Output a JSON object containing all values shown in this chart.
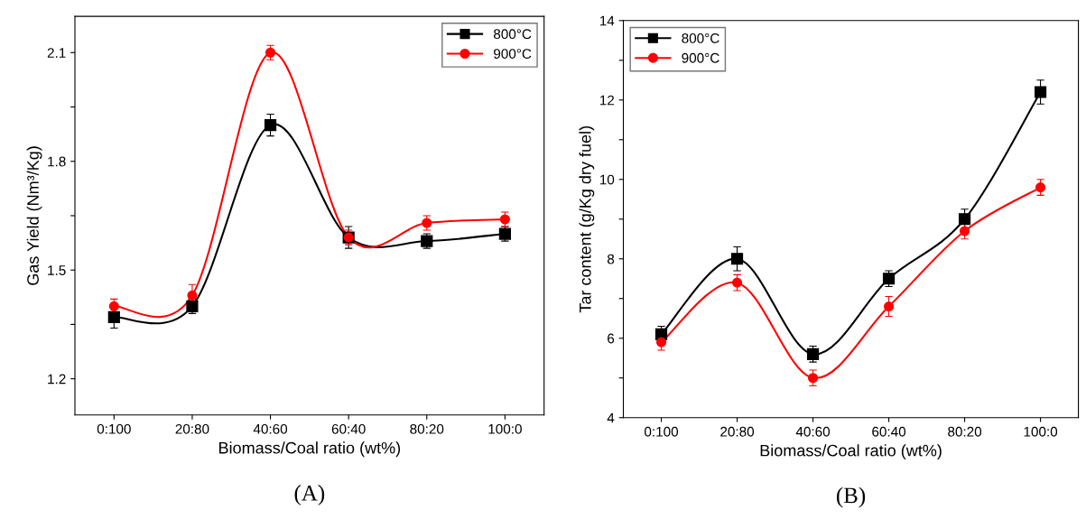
{
  "chart_data": [
    {
      "type": "line",
      "xlabel": "Biomass/Coal ratio (wt%)",
      "ylabel": "Gas Yield (Nm³/Kg)",
      "categories": [
        "0:100",
        "20:80",
        "40:60",
        "60:40",
        "80:20",
        "100:0"
      ],
      "series": [
        {
          "name": "800°C",
          "color": "#000000",
          "marker": "square",
          "values": [
            1.37,
            1.4,
            1.9,
            1.59,
            1.58,
            1.6
          ],
          "errors": [
            0.03,
            0.02,
            0.03,
            0.03,
            0.02,
            0.02
          ]
        },
        {
          "name": "900°C",
          "color": "#ff0000",
          "marker": "circle",
          "values": [
            1.4,
            1.43,
            2.1,
            1.59,
            1.63,
            1.64
          ],
          "errors": [
            0.02,
            0.03,
            0.02,
            0.02,
            0.02,
            0.02
          ]
        }
      ],
      "ylim": [
        1.1,
        2.2
      ],
      "yticks": [
        1.2,
        {
          "value": 1.35,
          "label": null
        },
        1.5,
        {
          "value": 1.65,
          "label": null
        },
        1.8,
        {
          "value": 1.95,
          "label": null
        },
        2.1
      ],
      "legend": "top right",
      "grid": false,
      "line_style": "solid",
      "annotations": [
        "(A)"
      ]
    },
    {
      "type": "line",
      "xlabel": "Biomass/Coal ratio (wt%)",
      "ylabel": "Tar content (g/Kg dry fuel)",
      "categories": [
        "0:100",
        "20:80",
        "40:60",
        "60:40",
        "80:20",
        "100:0"
      ],
      "series": [
        {
          "name": "800°C",
          "color": "#000000",
          "marker": "square",
          "values": [
            6.1,
            8.0,
            5.6,
            7.5,
            9.0,
            12.2
          ],
          "errors": [
            0.2,
            0.3,
            0.2,
            0.2,
            0.25,
            0.3
          ]
        },
        {
          "name": "900°C",
          "color": "#ff0000",
          "marker": "circle",
          "values": [
            5.9,
            7.4,
            5.0,
            6.8,
            8.7,
            9.8
          ],
          "errors": [
            0.2,
            0.2,
            0.2,
            0.25,
            0.2,
            0.2
          ]
        }
      ],
      "ylim": [
        4,
        14
      ],
      "yticks": [
        4,
        {
          "value": 5,
          "label": null
        },
        6,
        {
          "value": 7,
          "label": null
        },
        8,
        {
          "value": 9,
          "label": null
        },
        10,
        {
          "value": 11,
          "label": null
        },
        12,
        {
          "value": 13,
          "label": null
        },
        14
      ],
      "legend": "top left",
      "grid": false,
      "line_style": "solid",
      "annotations": [
        "(B)"
      ]
    }
  ]
}
